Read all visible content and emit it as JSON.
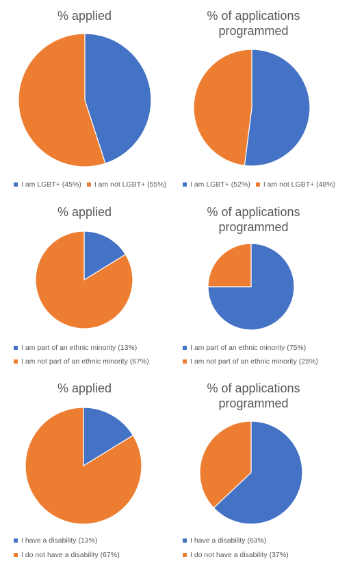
{
  "colors": {
    "blue": "#4472C4",
    "orange": "#ED7D31"
  },
  "chart_data": [
    {
      "type": "pie",
      "title": "% applied",
      "slices": [
        {
          "label": "I am LGBT+ (45%)",
          "value": 45,
          "color": "#4472C4"
        },
        {
          "label": "I am not LGBT+ (55%)",
          "value": 55,
          "color": "#ED7D31"
        }
      ],
      "legend": "bottom"
    },
    {
      "type": "pie",
      "title": "% of applications programmed",
      "slices": [
        {
          "label": "I am LGBT+ (52%)",
          "value": 52,
          "color": "#4472C4"
        },
        {
          "label": "I am not LGBT+ (48%)",
          "value": 48,
          "color": "#ED7D31"
        }
      ],
      "legend": "bottom"
    },
    {
      "type": "pie",
      "title": "% applied",
      "slices": [
        {
          "label": "I am part of an ethnic minority (13%)",
          "value": 13,
          "color": "#4472C4"
        },
        {
          "label": "I am not part of an ethnic minority (67%)",
          "value": 67,
          "color": "#ED7D31"
        }
      ],
      "legend": "bottom"
    },
    {
      "type": "pie",
      "title": "% of applications programmed",
      "slices": [
        {
          "label": "I am part of an ethnic minority (75%)",
          "value": 75,
          "color": "#4472C4"
        },
        {
          "label": "I am not part of an ethnic minority (25%)",
          "value": 25,
          "color": "#ED7D31"
        }
      ],
      "legend": "bottom"
    },
    {
      "type": "pie",
      "title": "% applied",
      "slices": [
        {
          "label": "I have a disability (13%)",
          "value": 13,
          "color": "#4472C4"
        },
        {
          "label": "I do not have a disability (67%)",
          "value": 67,
          "color": "#ED7D31"
        }
      ],
      "legend": "bottom"
    },
    {
      "type": "pie",
      "title": "% of applications programmed",
      "slices": [
        {
          "label": "I have a disability (63%)",
          "value": 63,
          "color": "#4472C4"
        },
        {
          "label": "I do not have a disability (37%)",
          "value": 37,
          "color": "#ED7D31"
        }
      ],
      "legend": "bottom"
    }
  ]
}
